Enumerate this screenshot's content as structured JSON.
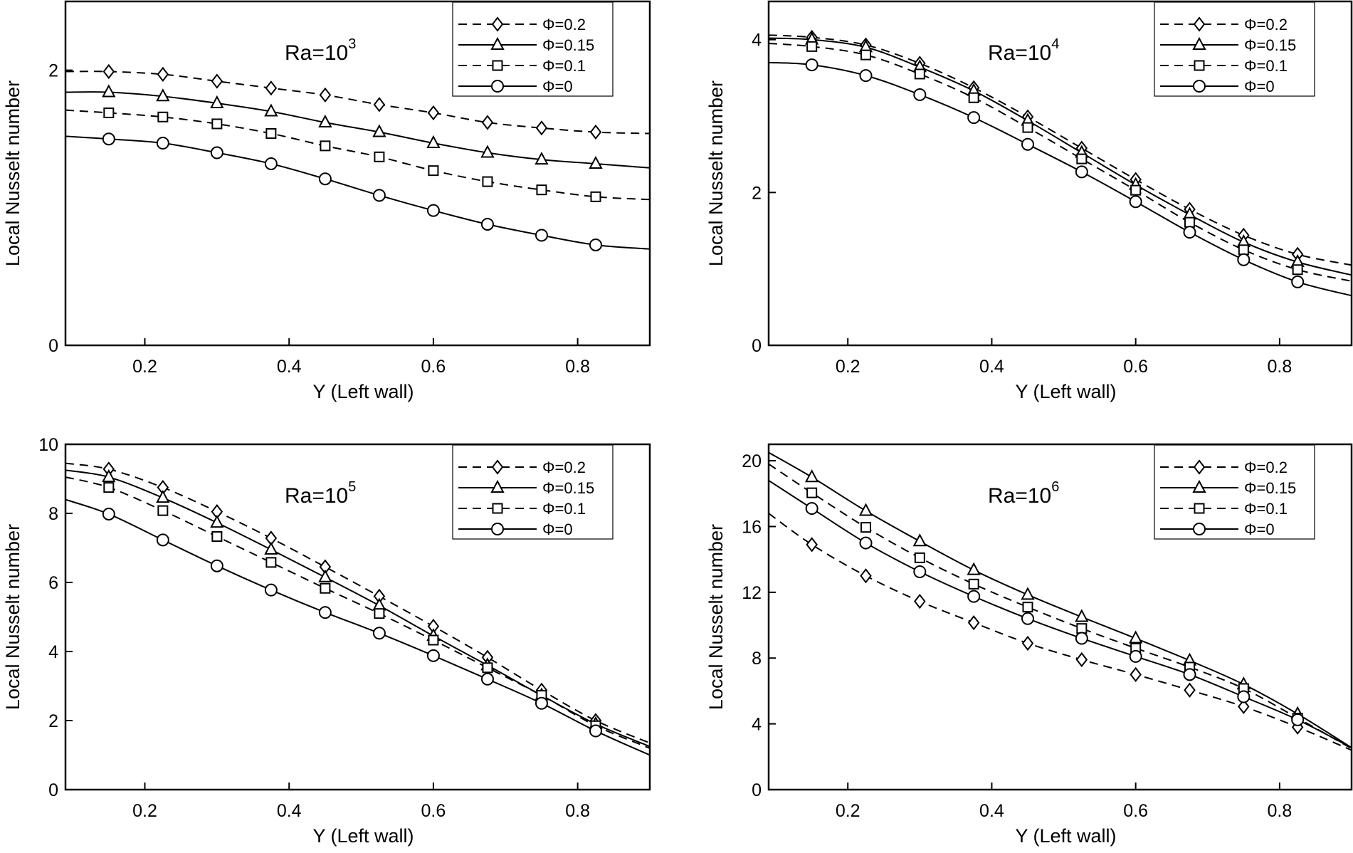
{
  "chart_data": [
    {
      "type": "line",
      "title_base": "Ra=10",
      "title_exp": "3",
      "xlabel": "Y (Left wall)",
      "ylabel": "Local Nusselt number",
      "xlim": [
        0.09,
        0.9
      ],
      "ylim": [
        0,
        2.5
      ],
      "xticks": [
        0.2,
        0.4,
        0.6,
        0.8
      ],
      "yticks": [
        0,
        2
      ],
      "legend_position": "top-right",
      "grid": false,
      "x": [
        0.09,
        0.15,
        0.225,
        0.3,
        0.375,
        0.45,
        0.525,
        0.6,
        0.675,
        0.75,
        0.825,
        0.9
      ],
      "series": [
        {
          "name": "Φ=0.2",
          "marker": "diamond",
          "dash": true,
          "values": [
            1.99,
            1.99,
            1.97,
            1.92,
            1.87,
            1.82,
            1.75,
            1.69,
            1.62,
            1.58,
            1.55,
            1.54
          ]
        },
        {
          "name": "Φ=0.15",
          "marker": "triangle",
          "dash": false,
          "values": [
            1.84,
            1.84,
            1.81,
            1.76,
            1.7,
            1.62,
            1.55,
            1.47,
            1.4,
            1.35,
            1.32,
            1.29
          ]
        },
        {
          "name": "Φ=0.1",
          "marker": "square",
          "dash": true,
          "values": [
            1.71,
            1.69,
            1.66,
            1.61,
            1.54,
            1.45,
            1.37,
            1.27,
            1.19,
            1.13,
            1.08,
            1.06
          ]
        },
        {
          "name": "Φ=0",
          "marker": "circle",
          "dash": false,
          "values": [
            1.52,
            1.5,
            1.47,
            1.4,
            1.32,
            1.21,
            1.09,
            0.98,
            0.88,
            0.8,
            0.73,
            0.7
          ]
        }
      ]
    },
    {
      "type": "line",
      "title_base": "Ra=10",
      "title_exp": "4",
      "xlabel": "Y (Left wall)",
      "ylabel": "Local Nusselt number",
      "xlim": [
        0.09,
        0.9
      ],
      "ylim": [
        0,
        4.5
      ],
      "xticks": [
        0.2,
        0.4,
        0.6,
        0.8
      ],
      "yticks": [
        0,
        2,
        4
      ],
      "legend_position": "top-right",
      "grid": false,
      "x": [
        0.09,
        0.15,
        0.225,
        0.3,
        0.375,
        0.45,
        0.525,
        0.6,
        0.675,
        0.75,
        0.825,
        0.9
      ],
      "series": [
        {
          "name": "Φ=0.2",
          "marker": "diamond",
          "dash": true,
          "values": [
            4.06,
            4.03,
            3.93,
            3.69,
            3.37,
            2.99,
            2.58,
            2.17,
            1.78,
            1.44,
            1.19,
            1.05
          ]
        },
        {
          "name": "Φ=0.15",
          "marker": "triangle",
          "dash": false,
          "values": [
            4.02,
            4.0,
            3.9,
            3.64,
            3.33,
            2.94,
            2.52,
            2.1,
            1.71,
            1.35,
            1.09,
            0.92
          ]
        },
        {
          "name": "Φ=0.1",
          "marker": "square",
          "dash": true,
          "values": [
            3.95,
            3.91,
            3.8,
            3.55,
            3.24,
            2.85,
            2.44,
            2.03,
            1.61,
            1.25,
            0.99,
            0.84
          ]
        },
        {
          "name": "Φ=0",
          "marker": "circle",
          "dash": false,
          "values": [
            3.7,
            3.67,
            3.53,
            3.28,
            2.98,
            2.63,
            2.27,
            1.88,
            1.48,
            1.12,
            0.83,
            0.65
          ]
        }
      ]
    },
    {
      "type": "line",
      "title_base": "Ra=10",
      "title_exp": "5",
      "xlabel": "Y (Left wall)",
      "ylabel": "Local Nusselt number",
      "xlim": [
        0.09,
        0.9
      ],
      "ylim": [
        0,
        10
      ],
      "xticks": [
        0.2,
        0.4,
        0.6,
        0.8
      ],
      "yticks": [
        0,
        2,
        4,
        6,
        8,
        10
      ],
      "legend_position": "top-right",
      "grid": false,
      "x": [
        0.09,
        0.15,
        0.225,
        0.3,
        0.375,
        0.45,
        0.525,
        0.6,
        0.675,
        0.75,
        0.825,
        0.9
      ],
      "series": [
        {
          "name": "Φ=0.2",
          "marker": "diamond",
          "dash": true,
          "values": [
            9.45,
            9.28,
            8.75,
            8.05,
            7.28,
            6.45,
            5.6,
            4.73,
            3.83,
            2.88,
            2.0,
            1.35
          ]
        },
        {
          "name": "Φ=0.15",
          "marker": "triangle",
          "dash": false,
          "values": [
            9.25,
            9.05,
            8.45,
            7.73,
            6.95,
            6.15,
            5.33,
            4.45,
            3.6,
            2.73,
            1.9,
            1.25
          ]
        },
        {
          "name": "Φ=0.1",
          "marker": "square",
          "dash": true,
          "values": [
            9.05,
            8.75,
            8.08,
            7.33,
            6.58,
            5.83,
            5.1,
            4.33,
            3.53,
            2.73,
            1.85,
            1.2
          ]
        },
        {
          "name": "Φ=0",
          "marker": "circle",
          "dash": false,
          "values": [
            8.4,
            7.98,
            7.23,
            6.48,
            5.78,
            5.13,
            4.53,
            3.88,
            3.2,
            2.5,
            1.7,
            1.0
          ]
        }
      ]
    },
    {
      "type": "line",
      "title_base": "Ra=10",
      "title_exp": "6",
      "xlabel": "Y (Left wall)",
      "ylabel": "Local Nusselt number",
      "xlim": [
        0.09,
        0.9
      ],
      "ylim": [
        0,
        21
      ],
      "xticks": [
        0.2,
        0.4,
        0.6,
        0.8
      ],
      "yticks": [
        0,
        4,
        8,
        12,
        16,
        20
      ],
      "legend_position": "top-right",
      "grid": false,
      "x": [
        0.09,
        0.15,
        0.225,
        0.3,
        0.375,
        0.45,
        0.525,
        0.6,
        0.675,
        0.75,
        0.825,
        0.9
      ],
      "series": [
        {
          "name": "Φ=0.2",
          "marker": "diamond",
          "dash": true,
          "values": [
            16.8,
            14.9,
            13.0,
            11.45,
            10.15,
            8.9,
            7.9,
            7.0,
            6.05,
            5.05,
            3.8,
            2.4
          ]
        },
        {
          "name": "Φ=0.15",
          "marker": "triangle",
          "dash": false,
          "values": [
            20.5,
            19.0,
            16.95,
            15.1,
            13.35,
            11.85,
            10.5,
            9.2,
            7.85,
            6.4,
            4.6,
            2.55
          ]
        },
        {
          "name": "Φ=0.1",
          "marker": "square",
          "dash": true,
          "values": [
            19.8,
            18.05,
            15.95,
            14.1,
            12.5,
            11.1,
            9.8,
            8.6,
            7.45,
            6.15,
            4.35,
            2.5
          ]
        },
        {
          "name": "Φ=0",
          "marker": "circle",
          "dash": false,
          "values": [
            18.8,
            17.1,
            15.0,
            13.25,
            11.75,
            10.4,
            9.2,
            8.1,
            7.0,
            5.65,
            4.25,
            2.55
          ]
        }
      ]
    }
  ]
}
